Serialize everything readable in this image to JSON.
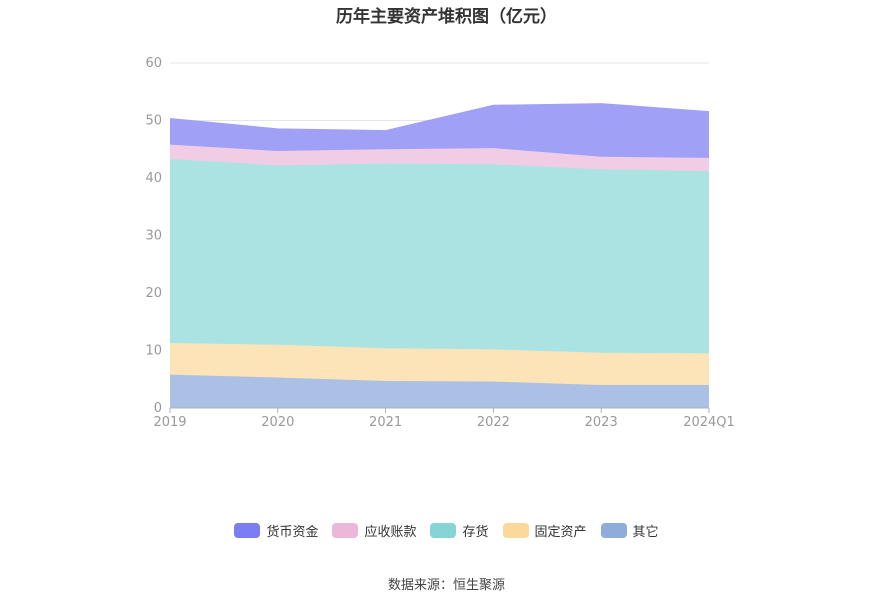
{
  "title": "历年主要资产堆积图（亿元）",
  "source": "数据来源：恒生聚源",
  "chart_data": {
    "type": "area",
    "stacked": true,
    "categories": [
      "2019",
      "2020",
      "2021",
      "2022",
      "2023",
      "2024Q1"
    ],
    "ylim": [
      0,
      60
    ],
    "yticks": [
      0,
      10,
      20,
      30,
      40,
      50,
      60
    ],
    "grid": true,
    "legend_position": "bottom",
    "series": [
      {
        "name": "其它",
        "color": "#aac1e5",
        "legend_color": "#8faddb",
        "values": [
          5.8,
          5.3,
          4.7,
          4.6,
          4.0,
          4.0
        ]
      },
      {
        "name": "固定资产",
        "color": "#fde3b8",
        "legend_color": "#fcd89a",
        "values": [
          5.5,
          5.7,
          5.7,
          5.6,
          5.6,
          5.5
        ]
      },
      {
        "name": "存货",
        "color": "#abe3e3",
        "legend_color": "#86d4d6",
        "values": [
          32.0,
          31.2,
          32.1,
          32.2,
          31.9,
          31.7
        ]
      },
      {
        "name": "应收账款",
        "color": "#f0cde4",
        "legend_color": "#ebb8da",
        "values": [
          2.5,
          2.5,
          2.5,
          2.8,
          2.2,
          2.3
        ]
      },
      {
        "name": "货币资金",
        "color": "#a0a1f6",
        "legend_color": "#7b7df0",
        "values": [
          4.5,
          3.8,
          3.2,
          7.4,
          9.2,
          8.0
        ]
      }
    ]
  }
}
